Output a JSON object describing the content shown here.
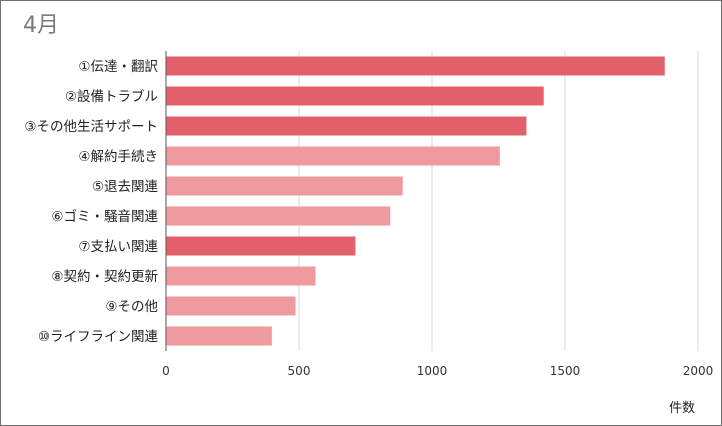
{
  "chart_data": {
    "type": "bar",
    "orientation": "horizontal",
    "title": "4月",
    "xlabel": "件数",
    "ylabel": "",
    "categories": [
      "①伝達・翻訳",
      "②設備トラブル",
      "③その他生活サポート",
      "④解約手続き",
      "⑤退去関連",
      "⑥ゴミ・騒音関連",
      "⑦支払い関連",
      "⑧契約・契約更新",
      "⑨その他",
      "⑩ライフライン関連"
    ],
    "values": [
      1875,
      1420,
      1355,
      1255,
      890,
      843,
      712,
      562,
      487,
      398
    ],
    "xlim": [
      0,
      2000
    ],
    "xticks": [
      0,
      500,
      1000,
      1500,
      2000
    ],
    "grid": "vertical",
    "legend": "none",
    "colors": {
      "dark_bar": "#e2606a",
      "light_bar": "#ee9a9e",
      "grid": "#d9d9d9",
      "axis": "#555555"
    },
    "bar_shades": [
      "dark",
      "dark",
      "dark",
      "light",
      "light",
      "light",
      "dark",
      "light",
      "light",
      "light"
    ]
  }
}
